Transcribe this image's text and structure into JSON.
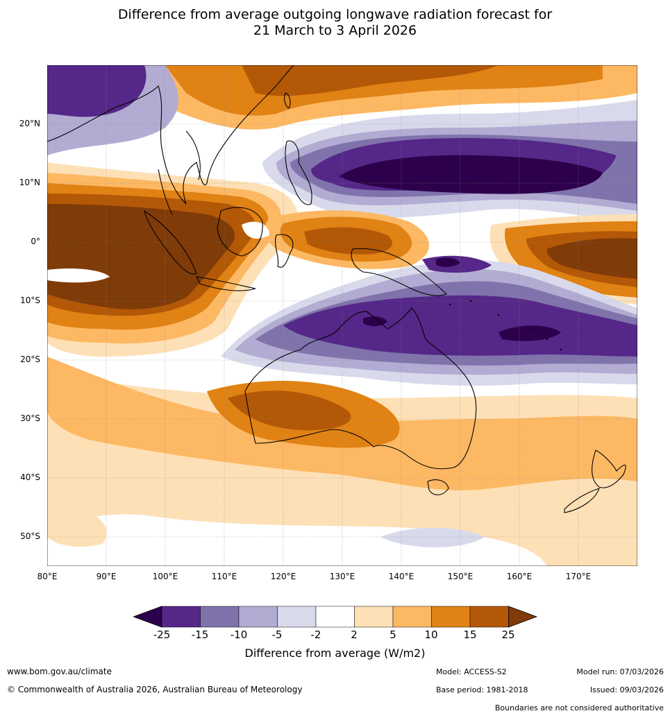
{
  "title": {
    "line1": "Difference from average outgoing longwave radiation forecast for",
    "line2": "21 March to 3 April 2026"
  },
  "map": {
    "region": "Australia and Western Pacific",
    "lat_labels": [
      "20°N",
      "10°N",
      "0°",
      "10°S",
      "20°S",
      "30°S",
      "40°S",
      "50°S"
    ],
    "lon_labels": [
      "80°E",
      "90°E",
      "100°E",
      "110°E",
      "120°E",
      "130°E",
      "140°E",
      "150°E",
      "160°E",
      "170°E"
    ]
  },
  "colorbar": {
    "labels": [
      "-25",
      "-15",
      "-10",
      "-5",
      "-2",
      "2",
      "5",
      "10",
      "15",
      "25"
    ],
    "title": "Difference from average (W/m2)",
    "colors": [
      "#2d004b",
      "#542788",
      "#8073ac",
      "#b2abd2",
      "#d8daeb",
      "#ffffff",
      "#fee0b6",
      "#fdb863",
      "#e08214",
      "#b35806",
      "#7f3b08"
    ]
  },
  "footer": {
    "website": "www.bom.gov.au/climate",
    "copyright": "© Commonwealth of Australia 2026, Australian Bureau of Meteorology",
    "model": "Model: ACCESS-S2",
    "base_period": "Base period: 1981-2018",
    "model_run": "Model run: 07/03/2026",
    "issued": "Issued: 09/03/2026",
    "disclaimer": "Boundaries are not considered authoritative"
  }
}
